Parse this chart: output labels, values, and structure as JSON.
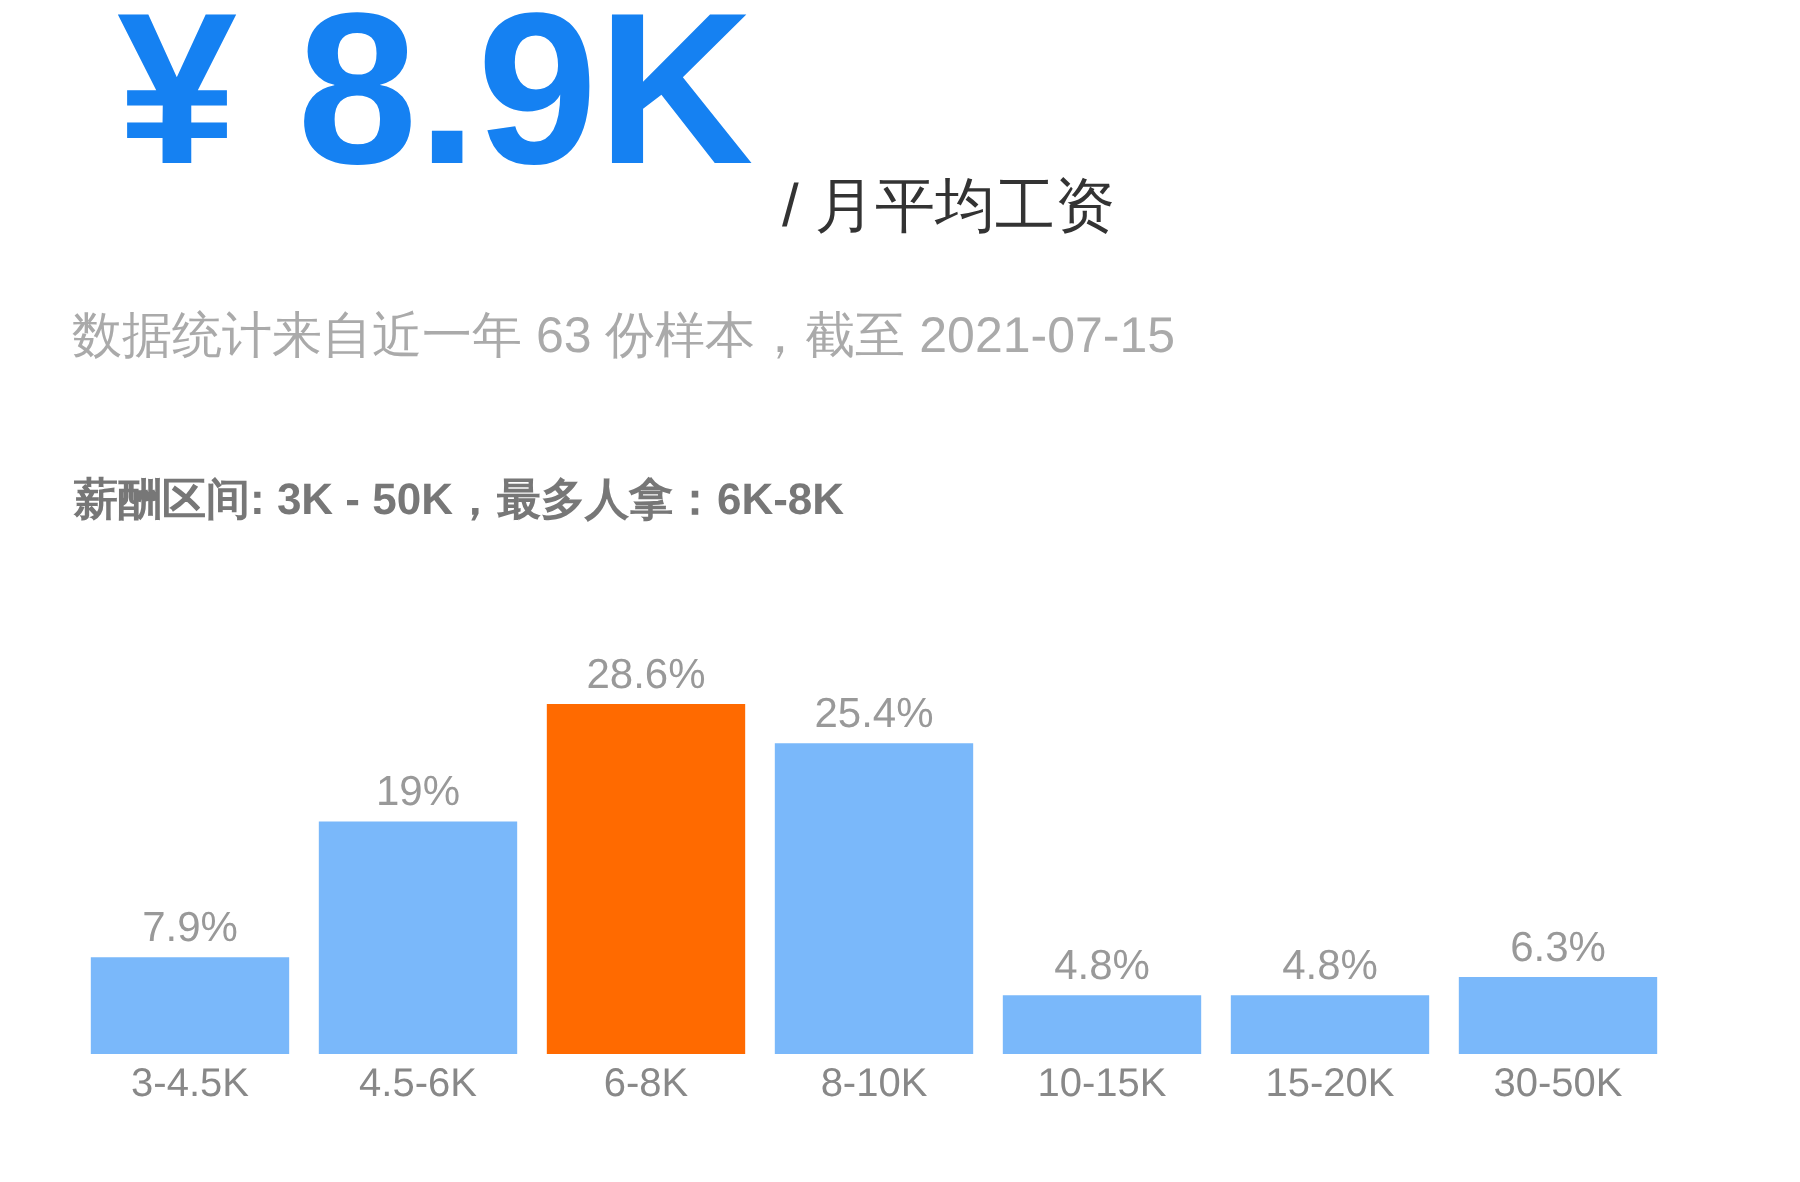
{
  "chart_data": {
    "type": "bar",
    "title": "¥ 8.9K",
    "subtitle": "/ 月平均工资",
    "annotations": [
      "数据统计来自近一年 63 份样本，截至 2021-07-15",
      "薪酬区间: 3K - 50K，最多人拿：6K-8K"
    ],
    "categories": [
      "3-4.5K",
      "4.5-6K",
      "6-8K",
      "8-10K",
      "10-15K",
      "15-20K",
      "30-50K"
    ],
    "values": [
      7.9,
      19,
      28.6,
      25.4,
      4.8,
      4.8,
      6.3
    ],
    "value_labels": [
      "7.9%",
      "19%",
      "28.6%",
      "25.4%",
      "4.8%",
      "4.8%",
      "6.3%"
    ],
    "colors": [
      "#7ab8fa",
      "#7ab8fa",
      "#ff6a00",
      "#7ab8fa",
      "#7ab8fa",
      "#7ab8fa",
      "#7ab8fa"
    ],
    "grid": false,
    "legend": false
  }
}
